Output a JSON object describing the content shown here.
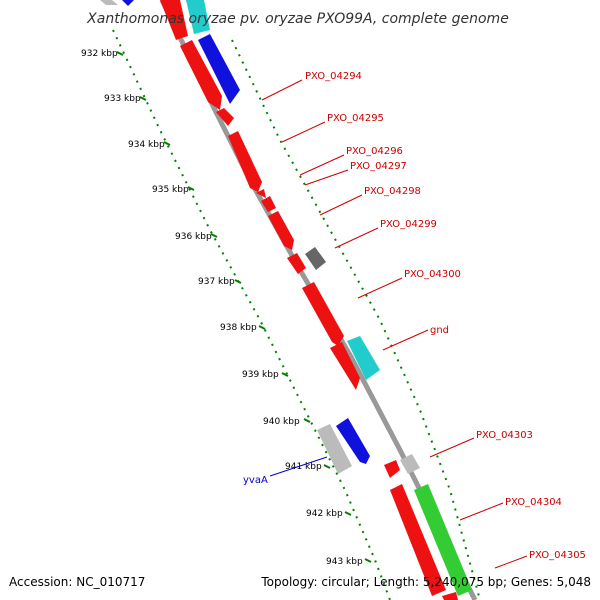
{
  "title": "Xanthomonas oryzae pv. oryzae PXO99A, complete genome",
  "footer": {
    "accession": "Accession: NC_010717",
    "summary": "Topology: circular; Length: 5,240,075 bp; Genes: 5,048"
  },
  "kbp_ticks": [
    "932 kbp",
    "933 kbp",
    "934 kbp",
    "935 kbp",
    "936 kbp",
    "937 kbp",
    "938 kbp",
    "939 kbp",
    "940 kbp",
    "941 kbp",
    "942 kbp",
    "943 kbp"
  ],
  "gene_labels": [
    {
      "text": "PXO_04294",
      "color": "#cc0000"
    },
    {
      "text": "PXO_04295",
      "color": "#cc0000"
    },
    {
      "text": "PXO_04296",
      "color": "#cc0000"
    },
    {
      "text": "PXO_04297",
      "color": "#cc0000"
    },
    {
      "text": "PXO_04298",
      "color": "#cc0000"
    },
    {
      "text": "PXO_04299",
      "color": "#cc0000"
    },
    {
      "text": "PXO_04300",
      "color": "#cc0000"
    },
    {
      "text": "gnd",
      "color": "#cc0000"
    },
    {
      "text": "PXO_04303",
      "color": "#cc0000"
    },
    {
      "text": "PXO_04304",
      "color": "#cc0000"
    },
    {
      "text": "PXO_04305",
      "color": "#cc0000"
    },
    {
      "text": "yvaA",
      "color": "#0000cc"
    }
  ],
  "colors": {
    "backbone": "#8c8c8c",
    "tick_dots": "#008000",
    "cds_red": "#ee1111",
    "cds_blue": "#1111dd",
    "cds_cyan": "#22cccc",
    "cds_green": "#33cc33",
    "cds_gray": "#bbbbbb",
    "cds_dark": "#666666"
  }
}
